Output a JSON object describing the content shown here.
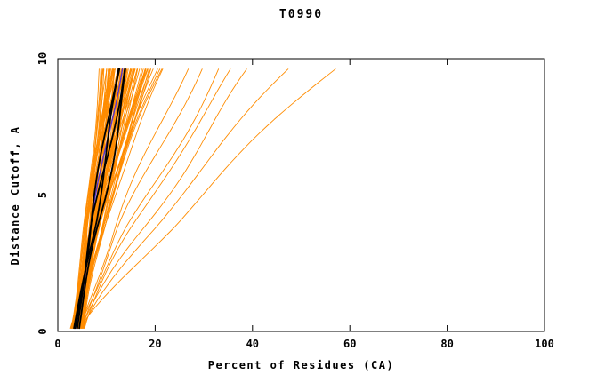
{
  "chart_data": {
    "type": "line",
    "title": "T0990",
    "xlabel": "Percent of Residues (CA)",
    "ylabel": "Distance Cutoff, A",
    "xlim": [
      0,
      100
    ],
    "ylim": [
      0,
      10
    ],
    "xticks": [
      0,
      20,
      40,
      60,
      80,
      100
    ],
    "yticks": [
      0,
      5,
      10
    ],
    "grid": false,
    "legend": "none",
    "colors": {
      "orange": "#ff8c00",
      "black": "#000000",
      "purple": "#5533cc"
    },
    "curve_model": "x(t) = x0 + (xt - x0) * t^p + amp*sin(ph + 7t)*min(1,2.5t); y(t) = 0.12 + 9.5t; each curve encoded as [x0, xt, p, ph, amp]; percent values estimated from pixels",
    "description": "Spaghetti plot of ~150 model accuracy curves for CASP target T0990: percent of CA residues (x) under a distance cutoff in Angstroms (y). Dense orange bundle between ~3% at cutoff 0 and ~8-22% at cutoff ~9.6; several orange outlier curves reach 26-57% at the top; a few thick black reference curves and one purple curve run through the middle of the bundle.",
    "series": {
      "orange": [
        [
          3.2,
          10.5,
          0.85,
          0.5,
          0.4
        ],
        [
          4.0,
          12.0,
          1.05,
          1.3,
          0.6
        ],
        [
          2.8,
          9.0,
          0.8,
          2.1,
          0.3
        ],
        [
          4.5,
          14.5,
          1.2,
          2.9,
          0.5
        ],
        [
          3.6,
          11.2,
          0.95,
          3.7,
          0.7
        ],
        [
          5.0,
          16.0,
          1.3,
          4.5,
          0.4
        ],
        [
          3.0,
          13.0,
          1.0,
          5.3,
          0.8
        ],
        [
          4.2,
          15.2,
          1.15,
          6.1,
          0.5
        ],
        [
          3.4,
          10.0,
          0.9,
          0.9,
          0.6
        ],
        [
          4.8,
          17.0,
          1.25,
          1.7,
          0.4
        ],
        [
          2.6,
          8.5,
          0.75,
          2.5,
          0.3
        ],
        [
          3.8,
          12.8,
          1.1,
          3.3,
          0.7
        ],
        [
          4.4,
          14.0,
          1.0,
          4.1,
          0.5
        ],
        [
          3.1,
          11.8,
          0.92,
          4.9,
          0.9
        ],
        [
          5.2,
          18.0,
          1.35,
          5.7,
          0.4
        ],
        [
          3.5,
          13.5,
          1.05,
          0.2,
          0.6
        ],
        [
          4.1,
          15.8,
          1.18,
          1.0,
          0.5
        ],
        [
          2.9,
          9.8,
          0.82,
          1.8,
          0.4
        ],
        [
          4.6,
          16.5,
          1.28,
          2.6,
          0.6
        ],
        [
          3.3,
          12.2,
          0.98,
          3.4,
          0.8
        ],
        [
          5.4,
          19.0,
          1.4,
          4.2,
          0.5
        ],
        [
          3.7,
          11.5,
          0.88,
          5.0,
          0.6
        ],
        [
          4.3,
          14.8,
          1.12,
          5.8,
          0.4
        ],
        [
          3.0,
          10.8,
          0.95,
          0.6,
          0.7
        ],
        [
          4.9,
          17.5,
          1.3,
          1.4,
          0.5
        ],
        [
          2.7,
          9.4,
          0.78,
          2.2,
          0.35
        ],
        [
          3.9,
          13.2,
          1.08,
          3.0,
          0.65
        ],
        [
          4.5,
          15.5,
          1.2,
          3.8,
          0.45
        ],
        [
          3.2,
          12.5,
          1.0,
          4.6,
          0.85
        ],
        [
          5.1,
          18.5,
          1.38,
          5.4,
          0.5
        ],
        [
          3.6,
          10.2,
          0.86,
          0.3,
          0.55
        ],
        [
          4.2,
          16.2,
          1.22,
          1.1,
          0.6
        ],
        [
          2.8,
          11.0,
          0.9,
          1.9,
          0.4
        ],
        [
          4.7,
          14.2,
          1.1,
          2.7,
          0.7
        ],
        [
          3.4,
          13.8,
          1.04,
          3.5,
          0.6
        ],
        [
          5.3,
          20.0,
          1.45,
          4.3,
          0.45
        ],
        [
          3.1,
          9.6,
          0.8,
          5.1,
          0.5
        ],
        [
          4.4,
          15.0,
          1.16,
          5.9,
          0.65
        ],
        [
          3.7,
          12.0,
          0.96,
          0.7,
          0.75
        ],
        [
          5.0,
          17.8,
          1.32,
          1.5,
          0.4
        ],
        [
          2.6,
          8.8,
          0.74,
          2.3,
          0.3
        ],
        [
          3.8,
          13.6,
          1.06,
          3.1,
          0.7
        ],
        [
          4.6,
          16.8,
          1.26,
          3.9,
          0.5
        ],
        [
          3.3,
          11.4,
          0.94,
          4.7,
          0.8
        ],
        [
          5.5,
          21.0,
          1.5,
          5.5,
          0.45
        ],
        [
          3.5,
          12.6,
          1.02,
          0.4,
          0.6
        ],
        [
          4.0,
          14.4,
          1.14,
          1.2,
          0.55
        ],
        [
          2.9,
          10.4,
          0.84,
          2.0,
          0.4
        ],
        [
          4.8,
          18.2,
          1.34,
          2.8,
          0.6
        ],
        [
          3.2,
          13.4,
          1.0,
          3.6,
          0.9
        ],
        [
          5.2,
          19.5,
          1.42,
          4.4,
          0.5
        ],
        [
          3.6,
          11.6,
          0.9,
          5.2,
          0.6
        ],
        [
          4.3,
          15.6,
          1.18,
          6.0,
          0.45
        ],
        [
          3.0,
          12.4,
          0.97,
          0.8,
          0.7
        ],
        [
          4.7,
          17.2,
          1.28,
          1.6,
          0.5
        ],
        [
          2.7,
          9.2,
          0.76,
          2.4,
          0.35
        ],
        [
          3.9,
          14.6,
          1.1,
          3.2,
          0.65
        ],
        [
          4.5,
          16.4,
          1.24,
          4.0,
          0.5
        ],
        [
          3.4,
          10.6,
          0.88,
          4.8,
          0.75
        ],
        [
          5.0,
          20.5,
          1.46,
          5.6,
          0.5
        ],
        [
          3.1,
          11.9,
          0.93,
          0.1,
          0.55
        ],
        [
          4.1,
          13.9,
          1.07,
          0.9,
          0.6
        ],
        [
          2.8,
          10.1,
          0.83,
          1.7,
          0.4
        ],
        [
          4.9,
          18.8,
          1.36,
          2.5,
          0.55
        ],
        [
          3.5,
          12.9,
          1.01,
          3.3,
          0.8
        ],
        [
          5.4,
          22.0,
          1.52,
          4.1,
          0.45
        ],
        [
          3.7,
          13.1,
          0.99,
          4.9,
          0.6
        ],
        [
          4.2,
          14.9,
          1.13,
          5.7,
          0.5
        ],
        [
          3.3,
          11.1,
          0.91,
          0.5,
          0.7
        ],
        [
          4.6,
          17.6,
          1.3,
          1.3,
          0.45
        ],
        [
          2.9,
          9.9,
          0.81,
          2.1,
          0.35
        ],
        [
          3.8,
          14.1,
          1.09,
          2.9,
          0.65
        ],
        [
          4.4,
          16.1,
          1.21,
          3.7,
          0.5
        ],
        [
          3.2,
          12.1,
          0.95,
          4.5,
          0.85
        ],
        [
          5.1,
          21.5,
          1.48,
          5.3,
          0.5
        ],
        [
          3.6,
          13.3,
          1.03,
          0.2,
          0.6
        ],
        [
          4.0,
          15.3,
          1.17,
          1.0,
          0.5
        ],
        [
          3.0,
          10.9,
          0.87,
          1.8,
          0.45
        ],
        [
          4.8,
          19.2,
          1.4,
          2.6,
          0.55
        ],
        [
          3.4,
          12.3,
          0.98,
          3.4,
          0.7
        ]
      ],
      "orange_outliers": [
        [
          4.5,
          26.0,
          1.1,
          0.8,
          0.8
        ],
        [
          5.0,
          29.0,
          1.15,
          1.6,
          0.9
        ],
        [
          4.2,
          33.0,
          1.05,
          2.4,
          1.0
        ],
        [
          5.5,
          36.0,
          1.2,
          3.2,
          0.8
        ],
        [
          4.8,
          40.0,
          1.1,
          4.0,
          1.2
        ],
        [
          5.2,
          48.0,
          1.18,
          4.8,
          1.0
        ],
        [
          4.6,
          57.0,
          1.12,
          5.6,
          1.3
        ]
      ],
      "black": [
        [
          3.6,
          12.0,
          1.0,
          0.6,
          0.5
        ],
        [
          4.0,
          13.5,
          1.12,
          2.0,
          0.6
        ],
        [
          4.4,
          14.5,
          1.05,
          3.5,
          0.7
        ],
        [
          3.3,
          13.0,
          0.95,
          4.8,
          0.5
        ]
      ],
      "purple": [
        [
          3.9,
          12.8,
          1.08,
          1.2,
          0.5
        ]
      ]
    }
  }
}
